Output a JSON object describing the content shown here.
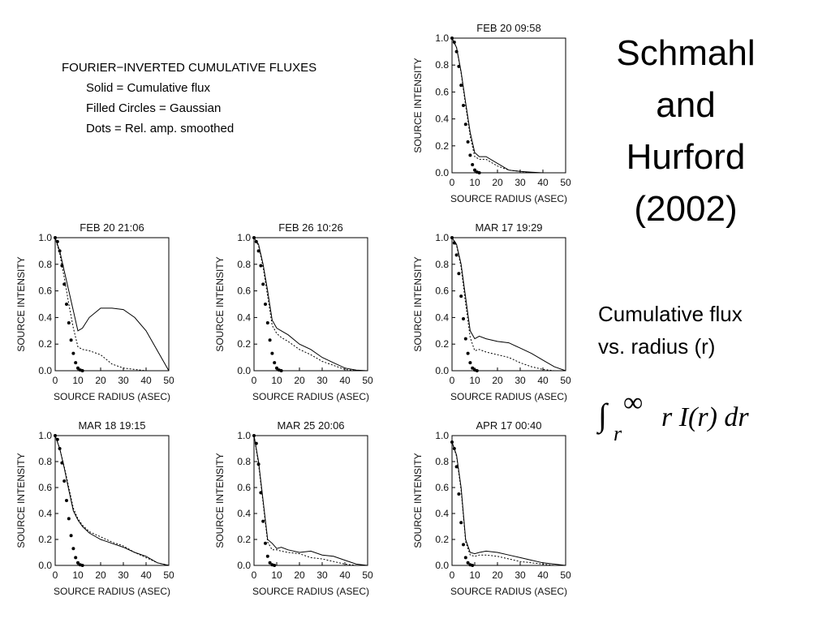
{
  "slide": {
    "title": "Schmahl and Hurford (2002)",
    "subtitle_lines": [
      "Cumulative flux",
      "vs. radius (r)"
    ],
    "formula": {
      "integral": "∫",
      "lower": "r",
      "upper": "∞",
      "integrand": "r I(r) dr"
    },
    "key": [
      "FOURIER−INVERTED CUMULATIVE FLUXES",
      "Solid = Cumulative flux",
      "Filled Circles = Gaussian",
      "Dots = Rel. amp. smoothed"
    ]
  },
  "chart_data": [
    {
      "type": "line",
      "title": "FEB 20 09:58",
      "xlabel": "SOURCE RADIUS (ASEC)",
      "ylabel": "SOURCE INTENSITY",
      "xlim": [
        0,
        50
      ],
      "ylim": [
        0,
        1
      ],
      "xticks": [
        0,
        10,
        20,
        30,
        40,
        50
      ],
      "yticks": [
        {
          "value": 0,
          "label": "0.0"
        },
        0.2,
        0.4,
        0.6,
        0.8,
        {
          "value": 1,
          "label": "1.0"
        }
      ],
      "color": "#000000",
      "series": [
        {
          "style": "solid",
          "x": [
            0,
            2,
            4,
            6,
            8,
            10,
            12,
            15,
            20,
            25,
            30,
            35,
            40,
            45,
            50
          ],
          "values": [
            1,
            0.93,
            0.75,
            0.52,
            0.3,
            0.15,
            0.12,
            0.12,
            0.07,
            0.02,
            0.01,
            0.005,
            0,
            0,
            0
          ]
        },
        {
          "style": "dotted",
          "x": [
            0,
            2,
            4,
            6,
            8,
            10,
            12,
            15,
            20,
            25,
            30,
            35,
            40,
            45,
            50
          ],
          "values": [
            1,
            0.93,
            0.74,
            0.5,
            0.27,
            0.12,
            0.1,
            0.1,
            0.05,
            0.02,
            0.01,
            0,
            0,
            0,
            0
          ]
        },
        {
          "style": "circles",
          "x": [
            0,
            1,
            2,
            3,
            4,
            5,
            6,
            7,
            8,
            9,
            10,
            11,
            12
          ],
          "values": [
            1,
            0.97,
            0.9,
            0.79,
            0.65,
            0.5,
            0.36,
            0.23,
            0.13,
            0.06,
            0.02,
            0.005,
            0
          ]
        }
      ]
    },
    {
      "type": "line",
      "title": "FEB 20 21:06",
      "xlabel": "SOURCE RADIUS (ASEC)",
      "ylabel": "SOURCE INTENSITY",
      "xlim": [
        0,
        50
      ],
      "ylim": [
        0,
        1
      ],
      "xticks": [
        0,
        10,
        20,
        30,
        40,
        50
      ],
      "yticks": [
        {
          "value": 0,
          "label": "0.0"
        },
        0.2,
        0.4,
        0.6,
        0.8,
        {
          "value": 1,
          "label": "1.0"
        }
      ],
      "color": "#000000",
      "series": [
        {
          "style": "solid",
          "x": [
            0,
            2,
            4,
            6,
            8,
            10,
            12,
            15,
            20,
            25,
            30,
            35,
            40,
            45,
            50
          ],
          "values": [
            1,
            0.9,
            0.75,
            0.6,
            0.45,
            0.3,
            0.32,
            0.4,
            0.47,
            0.47,
            0.46,
            0.4,
            0.3,
            0.15,
            0
          ]
        },
        {
          "style": "dotted",
          "x": [
            0,
            2,
            4,
            6,
            8,
            10,
            12,
            15,
            20,
            25,
            30,
            35,
            40,
            45,
            50
          ],
          "values": [
            1,
            0.88,
            0.7,
            0.5,
            0.32,
            0.18,
            0.16,
            0.15,
            0.12,
            0.05,
            0.02,
            0.01,
            0,
            0,
            0
          ]
        },
        {
          "style": "circles",
          "x": [
            0,
            1,
            2,
            3,
            4,
            5,
            6,
            7,
            8,
            9,
            10,
            11,
            12
          ],
          "values": [
            1,
            0.97,
            0.9,
            0.79,
            0.65,
            0.5,
            0.36,
            0.23,
            0.13,
            0.06,
            0.02,
            0.005,
            0
          ]
        }
      ]
    },
    {
      "type": "line",
      "title": "FEB 26 10:26",
      "xlabel": "SOURCE RADIUS (ASEC)",
      "ylabel": "SOURCE INTENSITY",
      "xlim": [
        0,
        50
      ],
      "ylim": [
        0,
        1
      ],
      "xticks": [
        0,
        10,
        20,
        30,
        40,
        50
      ],
      "yticks": [
        {
          "value": 0,
          "label": "0.0"
        },
        0.2,
        0.4,
        0.6,
        0.8,
        {
          "value": 1,
          "label": "1.0"
        }
      ],
      "color": "#000000",
      "series": [
        {
          "style": "solid",
          "x": [
            0,
            2,
            4,
            6,
            8,
            10,
            12,
            15,
            20,
            25,
            30,
            35,
            40,
            45,
            50
          ],
          "values": [
            1,
            0.95,
            0.8,
            0.6,
            0.38,
            0.32,
            0.3,
            0.27,
            0.2,
            0.16,
            0.1,
            0.06,
            0.02,
            0.005,
            0
          ]
        },
        {
          "style": "dotted",
          "x": [
            0,
            2,
            4,
            6,
            8,
            10,
            12,
            15,
            20,
            25,
            30,
            35,
            40,
            45,
            50
          ],
          "values": [
            1,
            0.94,
            0.78,
            0.56,
            0.34,
            0.28,
            0.25,
            0.22,
            0.16,
            0.12,
            0.07,
            0.04,
            0.01,
            0,
            0
          ]
        },
        {
          "style": "circles",
          "x": [
            0,
            1,
            2,
            3,
            4,
            5,
            6,
            7,
            8,
            9,
            10,
            11,
            12
          ],
          "values": [
            1,
            0.97,
            0.9,
            0.79,
            0.65,
            0.5,
            0.36,
            0.23,
            0.13,
            0.06,
            0.02,
            0.005,
            0
          ]
        }
      ]
    },
    {
      "type": "line",
      "title": "MAR 17 19:29",
      "xlabel": "SOURCE RADIUS (ASEC)",
      "ylabel": "SOURCE INTENSITY",
      "xlim": [
        0,
        50
      ],
      "ylim": [
        0,
        1
      ],
      "xticks": [
        0,
        10,
        20,
        30,
        40,
        50
      ],
      "yticks": [
        {
          "value": 0,
          "label": "0.0"
        },
        0.2,
        0.4,
        0.6,
        0.8,
        {
          "value": 1,
          "label": "1.0"
        }
      ],
      "color": "#000000",
      "series": [
        {
          "style": "solid",
          "x": [
            0,
            2,
            4,
            6,
            8,
            10,
            12,
            15,
            20,
            25,
            30,
            35,
            40,
            45,
            50
          ],
          "values": [
            1,
            0.95,
            0.8,
            0.55,
            0.3,
            0.24,
            0.26,
            0.24,
            0.22,
            0.21,
            0.17,
            0.13,
            0.08,
            0.03,
            0
          ]
        },
        {
          "style": "dotted",
          "x": [
            0,
            2,
            4,
            6,
            8,
            10,
            12,
            15,
            20,
            25,
            30,
            35,
            40,
            45,
            50
          ],
          "values": [
            1,
            0.94,
            0.78,
            0.5,
            0.25,
            0.15,
            0.16,
            0.14,
            0.12,
            0.1,
            0.06,
            0.03,
            0.01,
            0,
            0
          ]
        },
        {
          "style": "circles",
          "x": [
            0,
            1,
            2,
            3,
            4,
            5,
            6,
            7,
            8,
            9,
            10,
            11
          ],
          "values": [
            1,
            0.96,
            0.87,
            0.73,
            0.56,
            0.39,
            0.24,
            0.13,
            0.06,
            0.02,
            0.005,
            0
          ]
        }
      ]
    },
    {
      "type": "line",
      "title": "MAR 18 19:15",
      "xlabel": "SOURCE RADIUS (ASEC)",
      "ylabel": "SOURCE INTENSITY",
      "xlim": [
        0,
        50
      ],
      "ylim": [
        0,
        1
      ],
      "xticks": [
        0,
        10,
        20,
        30,
        40,
        50
      ],
      "yticks": [
        {
          "value": 0,
          "label": "0.0"
        },
        0.2,
        0.4,
        0.6,
        0.8,
        {
          "value": 1,
          "label": "1.0"
        }
      ],
      "color": "#000000",
      "series": [
        {
          "style": "solid",
          "x": [
            0,
            2,
            4,
            6,
            8,
            10,
            12,
            15,
            20,
            25,
            30,
            35,
            40,
            45,
            50
          ],
          "values": [
            1,
            0.9,
            0.75,
            0.58,
            0.42,
            0.35,
            0.3,
            0.25,
            0.2,
            0.17,
            0.14,
            0.1,
            0.07,
            0.02,
            0
          ]
        },
        {
          "style": "dotted",
          "x": [
            0,
            2,
            4,
            6,
            8,
            10,
            12,
            15,
            20,
            25,
            30,
            35,
            40,
            45,
            50
          ],
          "values": [
            1,
            0.9,
            0.76,
            0.6,
            0.44,
            0.36,
            0.31,
            0.26,
            0.22,
            0.18,
            0.15,
            0.1,
            0.06,
            0.02,
            0
          ]
        },
        {
          "style": "circles",
          "x": [
            0,
            1,
            2,
            3,
            4,
            5,
            6,
            7,
            8,
            9,
            10,
            11,
            12
          ],
          "values": [
            1,
            0.97,
            0.9,
            0.79,
            0.65,
            0.5,
            0.36,
            0.23,
            0.13,
            0.06,
            0.02,
            0.005,
            0
          ]
        }
      ]
    },
    {
      "type": "line",
      "title": "MAR 25 20:06",
      "xlabel": "SOURCE RADIUS (ASEC)",
      "ylabel": "SOURCE INTENSITY",
      "xlim": [
        0,
        50
      ],
      "ylim": [
        0,
        1
      ],
      "xticks": [
        0,
        10,
        20,
        30,
        40,
        50
      ],
      "yticks": [
        {
          "value": 0,
          "label": "0.0"
        },
        0.2,
        0.4,
        0.6,
        0.8,
        {
          "value": 1,
          "label": "1.0"
        }
      ],
      "color": "#000000",
      "series": [
        {
          "style": "solid",
          "x": [
            0,
            2,
            4,
            6,
            8,
            10,
            12,
            15,
            20,
            25,
            30,
            35,
            40,
            45,
            50
          ],
          "values": [
            1,
            0.8,
            0.5,
            0.2,
            0.17,
            0.13,
            0.14,
            0.12,
            0.1,
            0.11,
            0.08,
            0.07,
            0.04,
            0.01,
            0
          ]
        },
        {
          "style": "dotted",
          "x": [
            0,
            2,
            4,
            6,
            8,
            10,
            12,
            15,
            20,
            25,
            30,
            35,
            40,
            45,
            50
          ],
          "values": [
            1,
            0.78,
            0.48,
            0.18,
            0.12,
            0.12,
            0.11,
            0.1,
            0.09,
            0.06,
            0.05,
            0.03,
            0.01,
            0,
            0
          ]
        },
        {
          "style": "circles",
          "x": [
            0,
            1,
            2,
            3,
            4,
            5,
            6,
            7,
            8,
            9
          ],
          "values": [
            1,
            0.94,
            0.78,
            0.56,
            0.34,
            0.17,
            0.07,
            0.02,
            0.005,
            0
          ]
        }
      ]
    },
    {
      "type": "line",
      "title": "APR 17 00:40",
      "xlabel": "SOURCE RADIUS (ASEC)",
      "ylabel": "SOURCE INTENSITY",
      "xlim": [
        0,
        50
      ],
      "ylim": [
        0,
        1
      ],
      "xticks": [
        0,
        10,
        20,
        30,
        40,
        50
      ],
      "yticks": [
        {
          "value": 0,
          "label": "0.0"
        },
        0.2,
        0.4,
        0.6,
        0.8,
        {
          "value": 1,
          "label": "1.0"
        }
      ],
      "color": "#000000",
      "series": [
        {
          "style": "solid",
          "x": [
            0,
            2,
            4,
            6,
            8,
            10,
            12,
            15,
            20,
            25,
            30,
            35,
            40,
            45,
            50
          ],
          "values": [
            0.95,
            0.85,
            0.6,
            0.2,
            0.1,
            0.09,
            0.1,
            0.11,
            0.1,
            0.08,
            0.06,
            0.04,
            0.02,
            0.01,
            0
          ]
        },
        {
          "style": "dotted",
          "x": [
            0,
            2,
            4,
            6,
            8,
            10,
            12,
            15,
            20,
            25,
            30,
            35,
            40,
            45,
            50
          ],
          "values": [
            0.95,
            0.84,
            0.58,
            0.18,
            0.08,
            0.07,
            0.08,
            0.08,
            0.07,
            0.05,
            0.03,
            0.02,
            0.01,
            0,
            0
          ]
        },
        {
          "style": "circles",
          "x": [
            0,
            1,
            2,
            3,
            4,
            5,
            6,
            7,
            8,
            9
          ],
          "values": [
            0.95,
            0.9,
            0.76,
            0.55,
            0.33,
            0.16,
            0.06,
            0.02,
            0.005,
            0
          ]
        }
      ]
    }
  ]
}
